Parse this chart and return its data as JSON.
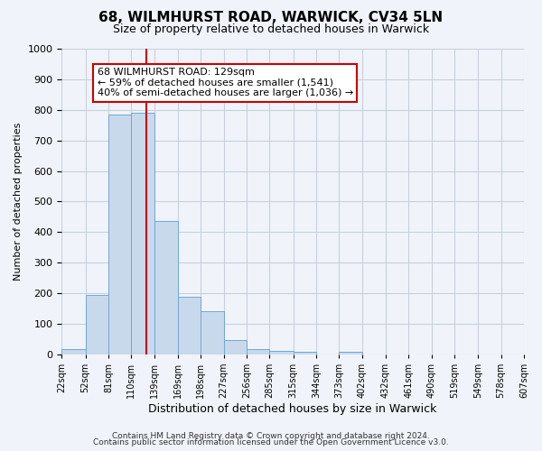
{
  "title": "68, WILMHURST ROAD, WARWICK, CV34 5LN",
  "subtitle": "Size of property relative to detached houses in Warwick",
  "xlabel": "Distribution of detached houses by size in Warwick",
  "ylabel": "Number of detached properties",
  "bar_color": "#c9d9ec",
  "bar_edge_color": "#6fa8d6",
  "grid_color": "#c8d0dc",
  "background_color": "#f0f4fa",
  "vline_x": 129,
  "vline_color": "#cc0000",
  "bin_edges": [
    22,
    52,
    81,
    110,
    139,
    169,
    198,
    227,
    256,
    285,
    315,
    344,
    373,
    402,
    432,
    461,
    490,
    519,
    549,
    578,
    607
  ],
  "bin_counts": [
    18,
    195,
    785,
    790,
    435,
    190,
    140,
    48,
    17,
    12,
    9,
    0,
    8,
    0,
    0,
    0,
    0,
    0,
    0,
    0
  ],
  "ylim": [
    0,
    1000
  ],
  "yticks": [
    0,
    100,
    200,
    300,
    400,
    500,
    600,
    700,
    800,
    900,
    1000
  ],
  "annotation_title": "68 WILMHURST ROAD: 129sqm",
  "annotation_line1": "← 59% of detached houses are smaller (1,541)",
  "annotation_line2": "40% of semi-detached houses are larger (1,036) →",
  "annotation_box_color": "#ffffff",
  "annotation_box_edge_color": "#cc0000",
  "footer1": "Contains HM Land Registry data © Crown copyright and database right 2024.",
  "footer2": "Contains public sector information licensed under the Open Government Licence v3.0."
}
